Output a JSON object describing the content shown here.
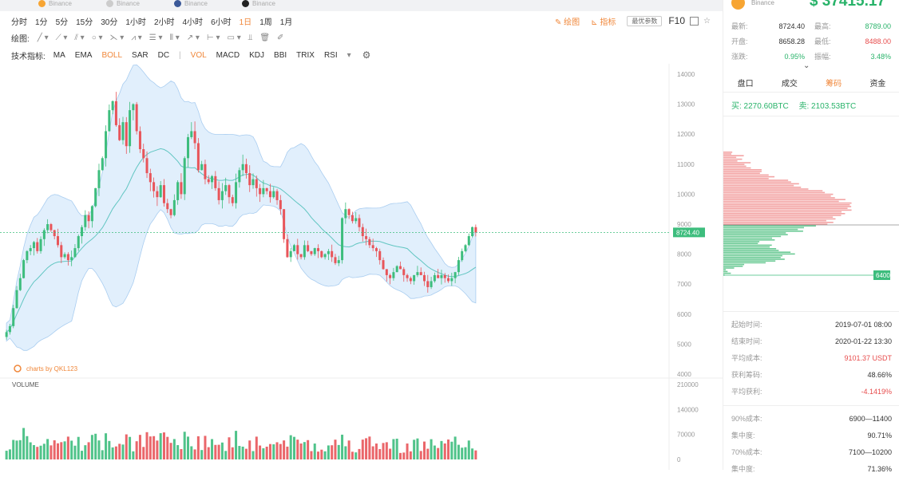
{
  "tabs": [
    {
      "label": "Binance",
      "color": "#f7a533"
    },
    {
      "label": "Binance",
      "color": "#cccccc"
    },
    {
      "label": "Binance",
      "color": "#3b5998"
    },
    {
      "label": "Binance",
      "color": "#222222"
    }
  ],
  "periods": [
    {
      "label": "分时",
      "active": false
    },
    {
      "label": "1分",
      "active": false
    },
    {
      "label": "5分",
      "active": false
    },
    {
      "label": "15分",
      "active": false
    },
    {
      "label": "30分",
      "active": false
    },
    {
      "label": "1小时",
      "active": false
    },
    {
      "label": "2小时",
      "active": false
    },
    {
      "label": "4小时",
      "active": false
    },
    {
      "label": "6小时",
      "active": false
    },
    {
      "label": "1日",
      "active": true
    },
    {
      "label": "1周",
      "active": false
    },
    {
      "label": "1月",
      "active": false
    }
  ],
  "toolbar": {
    "draw_label": "绘图",
    "indicator_text": "指标",
    "options_label": "最优参数",
    "f10_label": "F10",
    "draw_prefix": "绘图:"
  },
  "indicators_prefix": "技术指标:",
  "indicators_main": [
    {
      "label": "MA",
      "active": false
    },
    {
      "label": "EMA",
      "active": false
    },
    {
      "label": "BOLL",
      "active": true
    },
    {
      "label": "SAR",
      "active": false
    },
    {
      "label": "DC",
      "active": false
    }
  ],
  "indicators_sub": [
    {
      "label": "VOL",
      "active": true
    },
    {
      "label": "MACD",
      "active": false
    },
    {
      "label": "KDJ",
      "active": false
    },
    {
      "label": "BBI",
      "active": false
    },
    {
      "label": "TRIX",
      "active": false
    },
    {
      "label": "RSI",
      "active": false
    }
  ],
  "chart_data": {
    "type": "candlestick",
    "price_axis_ticks": [
      "14000",
      "13000",
      "12000",
      "11000",
      "10000",
      "9000",
      "8000",
      "7000",
      "6000",
      "5000",
      "4000"
    ],
    "ylim": [
      4000,
      14000
    ],
    "current_price_label": "8724.40",
    "watermark": "charts by QKL123",
    "volume_label": "VOLUME",
    "volume_axis_ticks": [
      "210000",
      "140000",
      "70000",
      "0"
    ],
    "volume_ylim": [
      0,
      210000
    ],
    "closes": [
      5400,
      5600,
      6200,
      6800,
      7200,
      7800,
      8100,
      8200,
      8400,
      8100,
      8500,
      8800,
      9000,
      8800,
      8600,
      8300,
      7900,
      8000,
      7800,
      7900,
      8200,
      8600,
      8900,
      9300,
      9100,
      9600,
      10200,
      10800,
      11200,
      12100,
      12800,
      13100,
      12300,
      11800,
      12400,
      11600,
      12800,
      13000,
      12100,
      11500,
      11200,
      10700,
      10400,
      10100,
      9900,
      10300,
      9700,
      9500,
      9300,
      9800,
      10400,
      10000,
      11200,
      11900,
      12100,
      11700,
      10800,
      11000,
      10500,
      10400,
      10600,
      10200,
      9800,
      10100,
      10300,
      9900,
      9700,
      10400,
      10800,
      11000,
      10700,
      10300,
      10500,
      10200,
      10000,
      10200,
      10100,
      9900,
      10100,
      9800,
      9500,
      8500,
      7900,
      8100,
      8300,
      8000,
      7900,
      8300,
      8100,
      8000,
      8200,
      8100,
      7900,
      8000,
      8100,
      7900,
      7700,
      7800,
      9200,
      9500,
      9300,
      9100,
      9200,
      8900,
      8600,
      8500,
      8300,
      8200,
      8100,
      7800,
      7500,
      7300,
      7200,
      7400,
      7600,
      7500,
      7300,
      7200,
      7100,
      7300,
      7400,
      7300,
      7100,
      6900,
      7100,
      7300,
      7200,
      7300,
      7200,
      7100,
      7200,
      7400,
      7800,
      8100,
      8300,
      8600,
      8900,
      8724
    ]
  },
  "coin": {
    "exchange": "Binance",
    "price": "$ 37415.17"
  },
  "stats": [
    {
      "k1": "最新:",
      "v1": "8724.40",
      "k2": "最高:",
      "v2": "8789.00",
      "c2": "#29b36a"
    },
    {
      "k1": "开盘:",
      "v1": "8658.28",
      "k2": "最低:",
      "v2": "8488.00",
      "c2": "#e74c4c"
    },
    {
      "k1": "涨跌:",
      "v1": "0.95%",
      "k2": "振幅:",
      "v2": "3.48%",
      "c2": "#29b36a",
      "c1": "#29b36a"
    }
  ],
  "panel_tabs": [
    {
      "label": "盘口",
      "active": false
    },
    {
      "label": "成交",
      "active": false
    },
    {
      "label": "筹码",
      "active": true
    },
    {
      "label": "资金",
      "active": false
    }
  ],
  "buysell": {
    "buy": "买: 2270.60BTC",
    "sell": "卖: 2103.53BTC"
  },
  "dist_label": "6400",
  "info_top": [
    {
      "k": "起始时间:",
      "v": "2019-07-01 08:00",
      "red": false
    },
    {
      "k": "结束时间:",
      "v": "2020-01-22 13:30",
      "red": false
    },
    {
      "k": "平均成本:",
      "v": "9101.37 USDT",
      "red": true
    },
    {
      "k": "获利筹码:",
      "v": "48.66%",
      "red": false
    },
    {
      "k": "平均获利:",
      "v": "-4.1419%",
      "red": true
    }
  ],
  "info_bottom": [
    {
      "k": "90%成本:",
      "v": "6900—11400",
      "red": false
    },
    {
      "k": "集中度:",
      "v": "90.71%",
      "red": false
    },
    {
      "k": "70%成本:",
      "v": "7100—10200",
      "red": false
    },
    {
      "k": "集中度:",
      "v": "71.36%",
      "red": false
    }
  ]
}
